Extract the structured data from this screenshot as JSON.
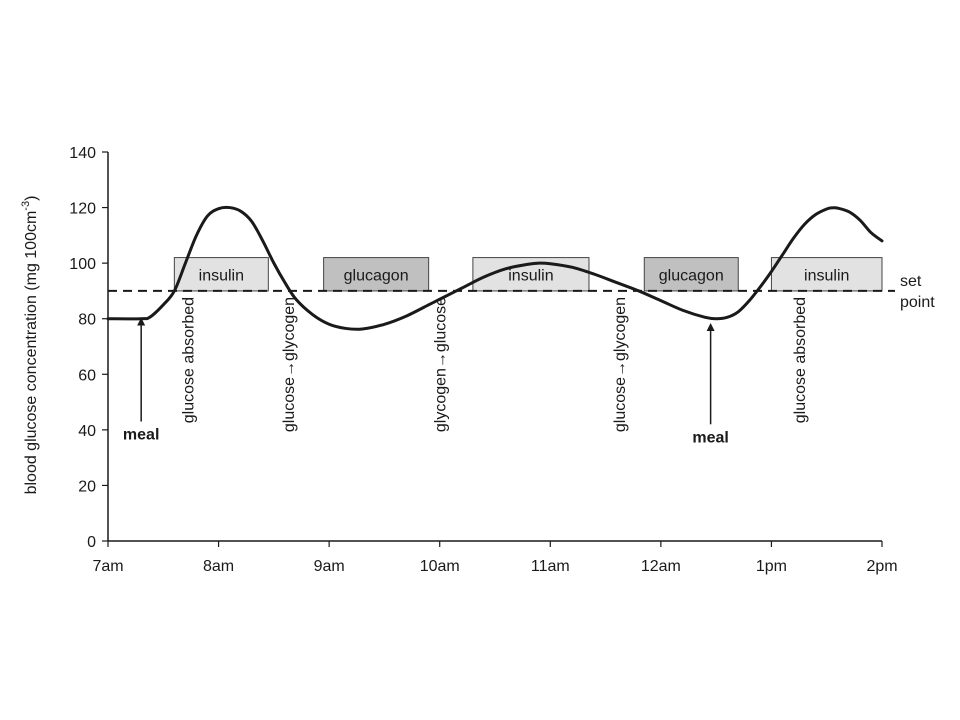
{
  "chart_data": {
    "type": "line",
    "ylabel_main": "blood glucose concentration (mg 100cm",
    "ylabel_sup": "-3",
    "ylabel_close": ")",
    "x_ticks": [
      "7am",
      "8am",
      "9am",
      "10am",
      "11am",
      "12am",
      "1pm",
      "2pm"
    ],
    "y_ticks": [
      0,
      20,
      40,
      60,
      80,
      100,
      120,
      140
    ],
    "ylim": [
      0,
      140
    ],
    "xlim_hours": [
      0,
      7
    ],
    "grid": false,
    "set_point": {
      "value": 90,
      "label_line1": "set",
      "label_line2": "point"
    },
    "series": [
      {
        "points": [
          [
            0.0,
            80
          ],
          [
            0.3,
            80
          ],
          [
            0.38,
            80.6
          ],
          [
            0.5,
            85
          ],
          [
            0.6,
            90
          ],
          [
            0.7,
            100
          ],
          [
            0.8,
            110
          ],
          [
            0.9,
            117
          ],
          [
            1.0,
            119.6
          ],
          [
            1.1,
            120
          ],
          [
            1.2,
            118.7
          ],
          [
            1.3,
            115
          ],
          [
            1.4,
            108
          ],
          [
            1.5,
            100
          ],
          [
            1.6,
            93
          ],
          [
            1.7,
            87
          ],
          [
            1.85,
            81.5
          ],
          [
            2.0,
            78
          ],
          [
            2.15,
            76.5
          ],
          [
            2.3,
            76.3
          ],
          [
            2.5,
            78
          ],
          [
            2.7,
            81
          ],
          [
            2.9,
            85
          ],
          [
            3.0,
            87
          ],
          [
            3.2,
            91
          ],
          [
            3.4,
            95
          ],
          [
            3.6,
            98
          ],
          [
            3.8,
            99.6
          ],
          [
            3.9,
            100
          ],
          [
            4.0,
            99.8
          ],
          [
            4.2,
            98.5
          ],
          [
            4.4,
            96
          ],
          [
            4.6,
            93
          ],
          [
            4.8,
            90
          ],
          [
            5.0,
            86.5
          ],
          [
            5.2,
            83
          ],
          [
            5.4,
            80.5
          ],
          [
            5.5,
            80
          ],
          [
            5.6,
            80.5
          ],
          [
            5.7,
            82.5
          ],
          [
            5.8,
            86.5
          ],
          [
            5.9,
            91.5
          ],
          [
            6.0,
            97
          ],
          [
            6.1,
            103
          ],
          [
            6.2,
            109
          ],
          [
            6.3,
            114
          ],
          [
            6.4,
            117.5
          ],
          [
            6.5,
            119.5
          ],
          [
            6.55,
            119.9
          ],
          [
            6.6,
            119.8
          ],
          [
            6.7,
            118.5
          ],
          [
            6.8,
            115.5
          ],
          [
            6.9,
            111
          ],
          [
            7.0,
            108
          ]
        ]
      }
    ],
    "hormone_boxes": [
      {
        "label": "insulin",
        "start": 0.6,
        "end": 1.45,
        "top": 102,
        "fill": "#e2e2e2"
      },
      {
        "label": "glucagon",
        "start": 1.95,
        "end": 2.9,
        "top": 102,
        "fill": "#c0c0c0"
      },
      {
        "label": "insulin",
        "start": 3.3,
        "end": 4.35,
        "top": 102,
        "fill": "#e2e2e2"
      },
      {
        "label": "glucagon",
        "start": 4.85,
        "end": 5.7,
        "top": 102,
        "fill": "#c0c0c0"
      },
      {
        "label": "insulin",
        "start": 6.0,
        "end": 7.0,
        "top": 102,
        "fill": "#e2e2e2"
      }
    ],
    "event_labels": [
      {
        "text": "glucose absorbed",
        "x": 0.72
      },
      {
        "text": "glucose→glycogen",
        "x": 1.63
      },
      {
        "text": "glycogen→glucose",
        "x": 3.0
      },
      {
        "text": "glucose→glycogen",
        "x": 4.62
      },
      {
        "text": "glucose absorbed",
        "x": 6.25
      }
    ],
    "meals": [
      {
        "label": "meal",
        "x": 0.3,
        "arrow_from": 43,
        "arrow_to": 79
      },
      {
        "label": "meal",
        "x": 5.45,
        "arrow_from": 42,
        "arrow_to": 77
      }
    ]
  }
}
